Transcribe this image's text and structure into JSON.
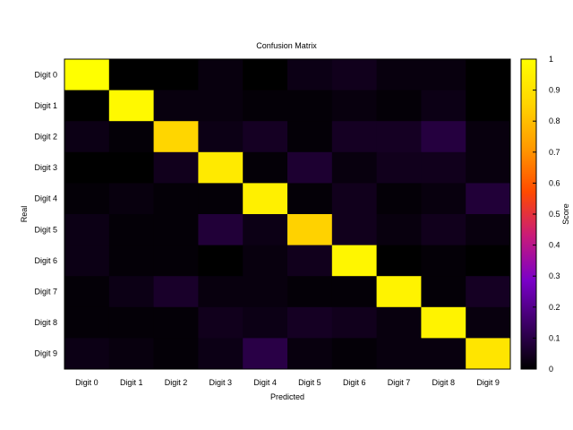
{
  "chart_data": {
    "type": "heatmap",
    "title": "Confusion Matrix",
    "xlabel": "Predicted",
    "ylabel": "Real",
    "colorbar_label": "Score",
    "x_categories": [
      "Digit 0",
      "Digit 1",
      "Digit 2",
      "Digit 3",
      "Digit 4",
      "Digit 5",
      "Digit 6",
      "Digit 7",
      "Digit 8",
      "Digit 9"
    ],
    "y_categories": [
      "Digit 0",
      "Digit 1",
      "Digit 2",
      "Digit 3",
      "Digit 4",
      "Digit 5",
      "Digit 6",
      "Digit 7",
      "Digit 8",
      "Digit 9"
    ],
    "colorbar_ticks": [
      "0",
      "0.1",
      "0.2",
      "0.3",
      "0.4",
      "0.5",
      "0.6",
      "0.7",
      "0.8",
      "0.9",
      "1"
    ],
    "value_range": [
      0,
      1
    ],
    "colormap": [
      "#000000",
      "#3b0064",
      "#7a00c8",
      "#c81a7a",
      "#ff4a00",
      "#ff9a00",
      "#ffd500",
      "#ffff00"
    ],
    "values": [
      [
        1.0,
        0.0,
        0.0,
        0.02,
        0.0,
        0.03,
        0.04,
        0.02,
        0.02,
        0.0
      ],
      [
        0.0,
        0.98,
        0.02,
        0.02,
        0.01,
        0.01,
        0.02,
        0.01,
        0.03,
        0.0
      ],
      [
        0.03,
        0.01,
        0.86,
        0.03,
        0.05,
        0.01,
        0.05,
        0.05,
        0.09,
        0.02
      ],
      [
        0.0,
        0.0,
        0.04,
        0.93,
        0.01,
        0.07,
        0.02,
        0.04,
        0.04,
        0.02
      ],
      [
        0.01,
        0.02,
        0.01,
        0.01,
        0.95,
        0.01,
        0.04,
        0.01,
        0.02,
        0.08
      ],
      [
        0.03,
        0.01,
        0.01,
        0.08,
        0.03,
        0.85,
        0.04,
        0.02,
        0.04,
        0.02
      ],
      [
        0.03,
        0.01,
        0.01,
        0.0,
        0.02,
        0.04,
        0.97,
        0.0,
        0.01,
        0.0
      ],
      [
        0.01,
        0.03,
        0.06,
        0.02,
        0.02,
        0.01,
        0.01,
        0.96,
        0.01,
        0.05
      ],
      [
        0.01,
        0.01,
        0.01,
        0.04,
        0.03,
        0.05,
        0.04,
        0.02,
        0.96,
        0.02
      ],
      [
        0.03,
        0.02,
        0.01,
        0.03,
        0.1,
        0.02,
        0.01,
        0.02,
        0.02,
        0.91
      ]
    ]
  }
}
